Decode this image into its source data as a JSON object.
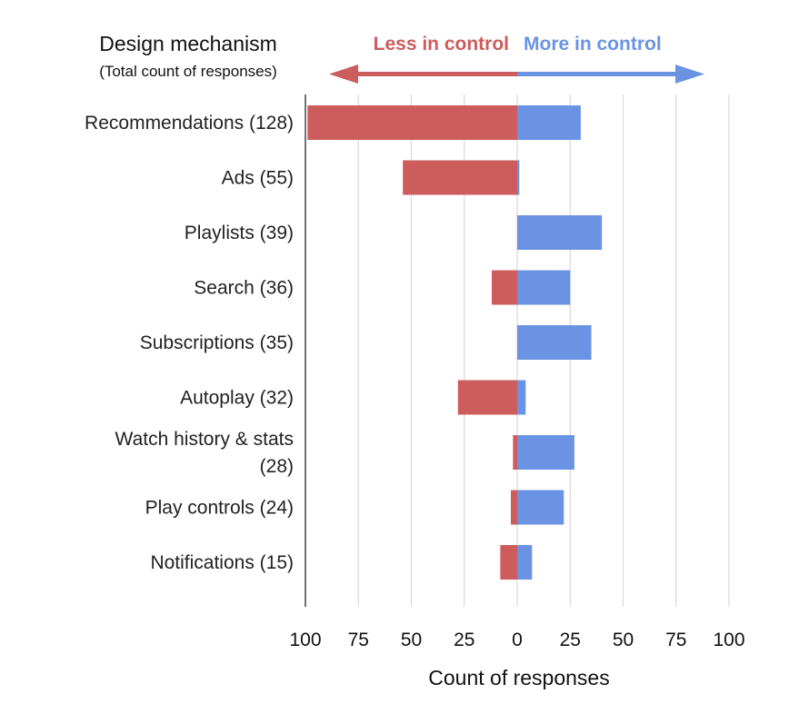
{
  "chart_data": {
    "type": "bar",
    "orientation": "horizontal-diverging",
    "legend_title": "Design mechanism",
    "legend_subtitle": "(Total count of responses)",
    "direction_labels": {
      "negative": "Less in control",
      "positive": "More in control"
    },
    "colors": {
      "negative": "#cd5c5c",
      "positive": "#6a94e3",
      "grid": "#d9d9d9",
      "axis": "#444444"
    },
    "categories": [
      [
        "Recommendations (128)"
      ],
      [
        "Ads (55)"
      ],
      [
        "Playlists (39)"
      ],
      [
        "Search (36)"
      ],
      [
        "Subscriptions (35)"
      ],
      [
        "Autoplay (32)"
      ],
      [
        "Watch history & stats",
        "(28)"
      ],
      [
        "Play controls (24)"
      ],
      [
        "Notifications (15)"
      ]
    ],
    "series": [
      {
        "name": "Less in control",
        "values": [
          99,
          54,
          0,
          12,
          0,
          28,
          2,
          3,
          8
        ]
      },
      {
        "name": "More in control",
        "values": [
          30,
          1,
          40,
          25,
          35,
          4,
          27,
          22,
          7
        ]
      }
    ],
    "x_ticks": [
      -100,
      -75,
      -50,
      -25,
      0,
      25,
      50,
      75,
      100
    ],
    "x_tick_labels": [
      "100",
      "75",
      "50",
      "25",
      "0",
      "25",
      "50",
      "75",
      "100"
    ],
    "xlim": [
      -100,
      100
    ],
    "xlabel": "Count of responses",
    "ylabel": "",
    "grid": true
  }
}
